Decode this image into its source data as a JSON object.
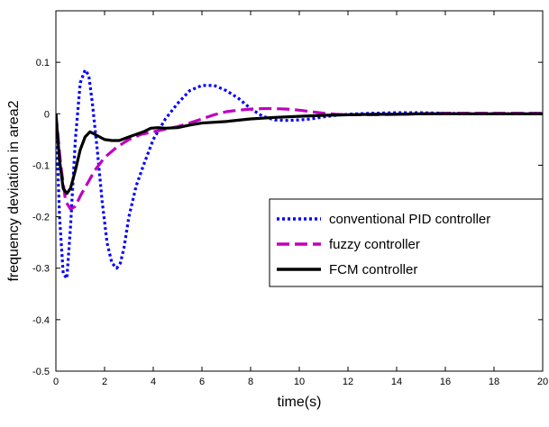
{
  "chart_data": {
    "type": "line",
    "title": "",
    "xlabel": "time(s)",
    "ylabel": "frequency deviation in area2",
    "xlim": [
      0,
      20
    ],
    "ylim": [
      -0.5,
      0.2
    ],
    "xticks": [
      0,
      2,
      4,
      6,
      8,
      10,
      12,
      14,
      16,
      18,
      20
    ],
    "xtick_labels": [
      "0",
      "2",
      "4",
      "6",
      "8",
      "10",
      "12",
      "14",
      "16",
      "18",
      "20"
    ],
    "yticks": [
      -0.5,
      -0.4,
      -0.3,
      -0.2,
      -0.1,
      0,
      0.1
    ],
    "ytick_labels": [
      "-0.5",
      "-0.4",
      "-0.3",
      "-0.2",
      "-0.1",
      "0",
      "0.1"
    ],
    "grid": false,
    "legend_position": "center-right",
    "series": [
      {
        "name": "conventional PID controller",
        "color": "#0000ff",
        "style": "dotted",
        "x": [
          0,
          0.15,
          0.3,
          0.45,
          0.6,
          0.8,
          1.0,
          1.2,
          1.35,
          1.5,
          1.7,
          1.9,
          2.1,
          2.3,
          2.5,
          2.65,
          2.8,
          3.0,
          3.3,
          3.6,
          4.0,
          4.5,
          5.0,
          5.5,
          6.0,
          6.5,
          7.0,
          7.5,
          8.0,
          8.5,
          9.0,
          9.5,
          10.0,
          10.5,
          11.0,
          11.5,
          12.0,
          13.0,
          14.0,
          15.0,
          16.0,
          17.0,
          18.0,
          19.0,
          20.0
        ],
        "y": [
          0,
          -0.2,
          -0.31,
          -0.32,
          -0.22,
          -0.05,
          0.06,
          0.085,
          0.075,
          0.02,
          -0.07,
          -0.17,
          -0.25,
          -0.29,
          -0.3,
          -0.29,
          -0.26,
          -0.2,
          -0.14,
          -0.1,
          -0.05,
          -0.01,
          0.02,
          0.045,
          0.055,
          0.055,
          0.045,
          0.03,
          0.01,
          -0.005,
          -0.012,
          -0.013,
          -0.012,
          -0.01,
          -0.006,
          -0.003,
          -0.001,
          0.001,
          0.002,
          0.002,
          0.001,
          0.0,
          0.0,
          0.0,
          0.0
        ]
      },
      {
        "name": "fuzzy controller",
        "color": "#bf00bf",
        "style": "dashed",
        "x": [
          0,
          0.2,
          0.4,
          0.6,
          0.8,
          1.0,
          1.3,
          1.6,
          2.0,
          2.5,
          3.0,
          3.5,
          4.0,
          4.5,
          5.0,
          5.5,
          6.0,
          6.5,
          7.0,
          7.5,
          8.0,
          8.5,
          9.0,
          9.5,
          10.0,
          10.5,
          11.0,
          11.5,
          12.0,
          13.0,
          14.0,
          15.0,
          16.0,
          17.0,
          18.0,
          19.0,
          20.0
        ],
        "y": [
          0,
          -0.1,
          -0.17,
          -0.185,
          -0.18,
          -0.16,
          -0.135,
          -0.11,
          -0.085,
          -0.065,
          -0.05,
          -0.04,
          -0.035,
          -0.03,
          -0.025,
          -0.018,
          -0.01,
          -0.002,
          0.004,
          0.007,
          0.009,
          0.01,
          0.01,
          0.009,
          0.007,
          0.004,
          0.001,
          -0.001,
          -0.002,
          -0.002,
          -0.001,
          0.0,
          0.001,
          0.001,
          0.001,
          0.001,
          0.001
        ]
      },
      {
        "name": "FCM controller",
        "color": "#000000",
        "style": "solid",
        "x": [
          0,
          0.15,
          0.3,
          0.45,
          0.6,
          0.8,
          1.0,
          1.2,
          1.4,
          1.6,
          1.8,
          2.0,
          2.3,
          2.6,
          3.0,
          3.3,
          3.6,
          3.9,
          4.2,
          4.5,
          5.0,
          5.5,
          6.0,
          7.0,
          8.0,
          9.0,
          10.0,
          11.0,
          12.0,
          13.0,
          14.0,
          15.0,
          16.0,
          17.0,
          18.0,
          19.0,
          20.0
        ],
        "y": [
          0,
          -0.09,
          -0.145,
          -0.155,
          -0.145,
          -0.11,
          -0.07,
          -0.045,
          -0.035,
          -0.04,
          -0.045,
          -0.05,
          -0.052,
          -0.052,
          -0.045,
          -0.04,
          -0.035,
          -0.028,
          -0.027,
          -0.028,
          -0.027,
          -0.022,
          -0.018,
          -0.015,
          -0.01,
          -0.007,
          -0.005,
          -0.003,
          -0.002,
          -0.001,
          -0.001,
          0.0,
          0.0,
          0.0,
          0.0,
          0.0,
          0.0
        ]
      }
    ]
  }
}
